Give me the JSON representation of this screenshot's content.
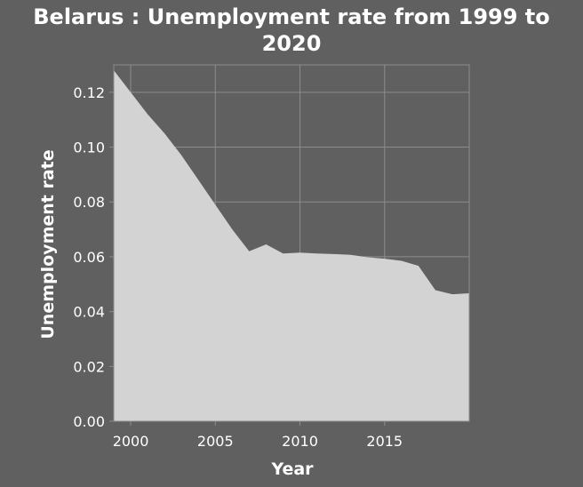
{
  "chart_data": {
    "type": "area",
    "title_lines": [
      "Belarus : Unemployment rate from 1999 to",
      "2020"
    ],
    "xlabel": "Year",
    "ylabel": "Unemployment rate",
    "xlim": [
      1999,
      2020
    ],
    "ylim": [
      0,
      0.13
    ],
    "xticks": [
      2000,
      2005,
      2010,
      2015
    ],
    "xtick_labels": [
      "2000",
      "2005",
      "2010",
      "2015"
    ],
    "yticks": [
      0,
      0.02,
      0.04,
      0.06,
      0.08,
      0.1,
      0.12
    ],
    "ytick_labels": [
      "0.00",
      "0.02",
      "0.04",
      "0.06",
      "0.08",
      "0.10",
      "0.12"
    ],
    "grid": true,
    "colors": {
      "background": "#606060",
      "fill": "#d3d3d3",
      "grid": "#8c8c8c",
      "text": "#ffffff"
    },
    "x": [
      1999,
      2000,
      2001,
      2002,
      2003,
      2004,
      2005,
      2006,
      2007,
      2008,
      2009,
      2010,
      2011,
      2012,
      2013,
      2014,
      2015,
      2016,
      2017,
      2018,
      2019,
      2020
    ],
    "y": [
      0.128,
      0.12,
      0.112,
      0.105,
      0.097,
      0.088,
      0.079,
      0.07,
      0.062,
      0.0645,
      0.0612,
      0.0615,
      0.0612,
      0.061,
      0.0607,
      0.0598,
      0.0593,
      0.0585,
      0.0567,
      0.0478,
      0.0463,
      0.0467
    ]
  }
}
